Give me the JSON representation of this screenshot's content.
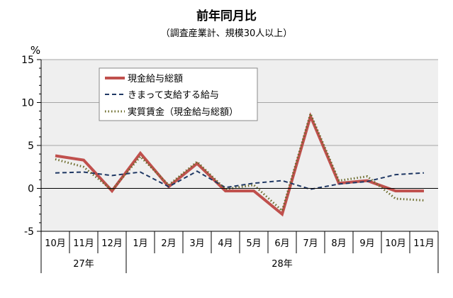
{
  "chart_data": {
    "type": "line",
    "title": "前年同月比",
    "subtitle": "（調査産業計、規模30人以上）",
    "y_unit": "%",
    "ylim": [
      -5,
      15
    ],
    "yticks": [
      "15",
      "10",
      "5",
      "0",
      "-5"
    ],
    "yticks_values": [
      15,
      10,
      5,
      0,
      -5
    ],
    "grid": true,
    "legend_position": "top-left",
    "categories": [
      "10月",
      "11月",
      "12月",
      "1月",
      "2月",
      "3月",
      "4月",
      "5月",
      "6月",
      "7月",
      "8月",
      "9月",
      "10月",
      "11月"
    ],
    "year_groups": [
      {
        "label": "27年",
        "count": 3
      },
      {
        "label": "28年",
        "count": 11
      }
    ],
    "series": [
      {
        "name": "現金給与総額",
        "color": "#c0504d",
        "style": "solid",
        "values": [
          3.8,
          3.3,
          -0.3,
          4.1,
          0.2,
          2.9,
          -0.3,
          -0.3,
          -3.0,
          8.4,
          0.6,
          0.9,
          -0.3,
          -0.3
        ]
      },
      {
        "name": "きまって支給する給与",
        "color": "#1f3864",
        "style": "dashed",
        "values": [
          1.8,
          1.9,
          1.5,
          1.9,
          0.2,
          2.0,
          0.1,
          0.6,
          0.9,
          -0.1,
          0.5,
          0.8,
          1.6,
          1.8
        ]
      },
      {
        "name": "実質賃金（現金給与総額）",
        "color": "#6b6b2a",
        "style": "dotted",
        "values": [
          3.4,
          2.5,
          -0.2,
          3.7,
          0.4,
          3.1,
          -0.1,
          0.4,
          -2.6,
          8.7,
          0.9,
          1.4,
          -1.2,
          -1.4
        ]
      }
    ]
  }
}
